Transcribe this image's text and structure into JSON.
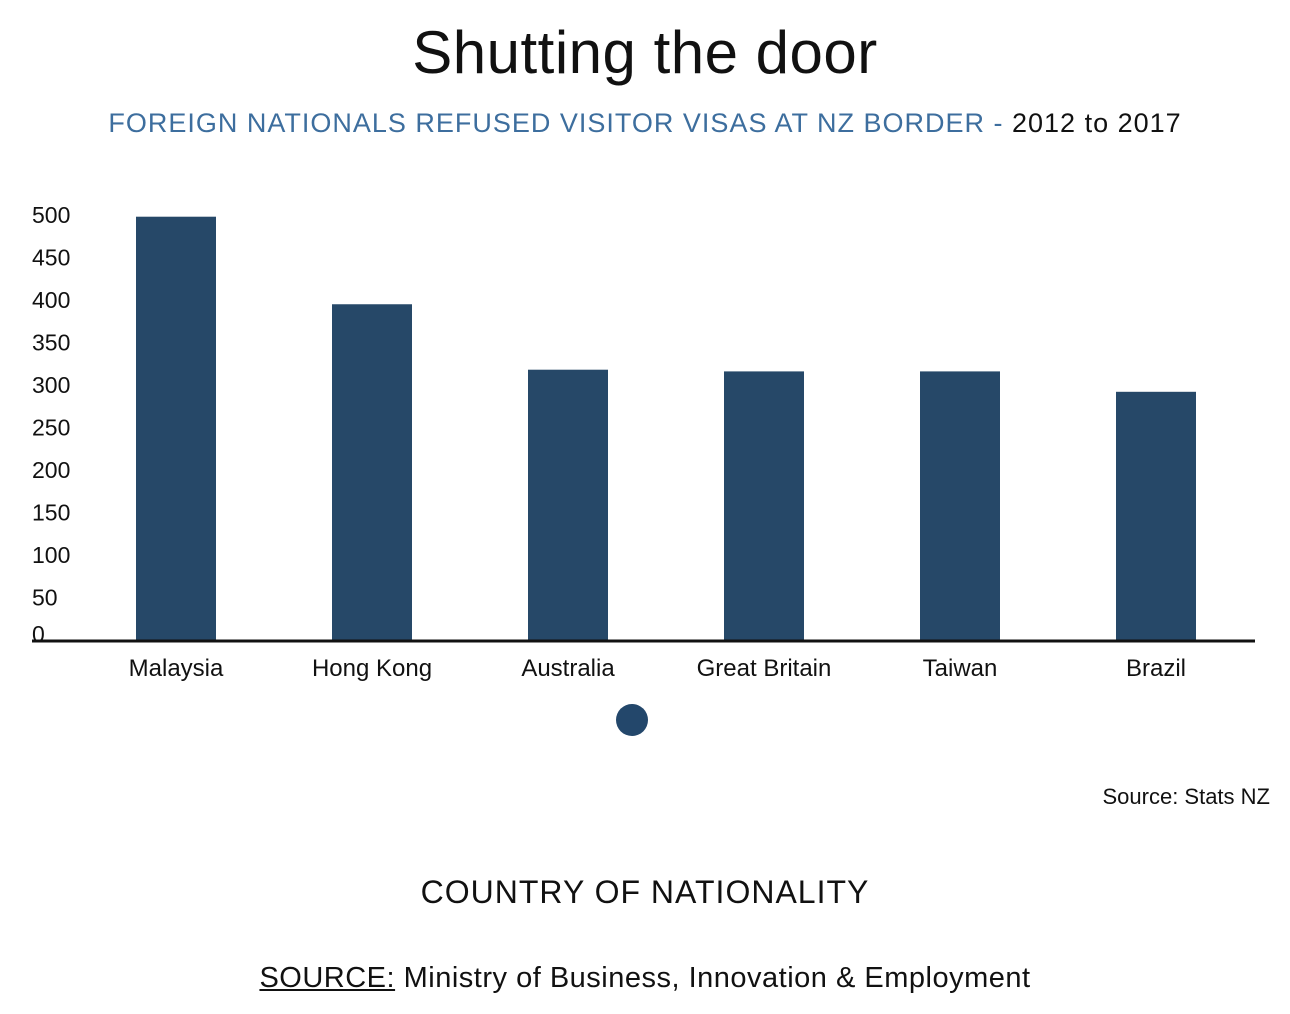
{
  "title": "Shutting the door",
  "subtitle_main": "FOREIGN NATIONALS REFUSED VISITOR VISAS AT NZ BORDER - ",
  "subtitle_years": "2012 to 2017",
  "source_small": "Source: Stats NZ",
  "x_axis_title": "COUNTRY OF NATIONALITY",
  "source_label": "SOURCE:",
  "source_text": " Ministry of Business, Innovation & Employment",
  "colors": {
    "bar": "#264868",
    "subtitle": "#3d6e9e",
    "dot": "#23476b"
  },
  "chart_data": {
    "type": "bar",
    "categories": [
      "Malaysia",
      "Hong Kong",
      "Australia",
      "Great Britain",
      "Taiwan",
      "Brazil"
    ],
    "values": [
      498,
      395,
      318,
      316,
      316,
      292
    ],
    "ylim": [
      0,
      500
    ],
    "yticks": [
      "500",
      "450",
      "400",
      "350",
      "300",
      "250",
      "200",
      "150",
      "100",
      "50",
      "0"
    ],
    "grid": false
  }
}
